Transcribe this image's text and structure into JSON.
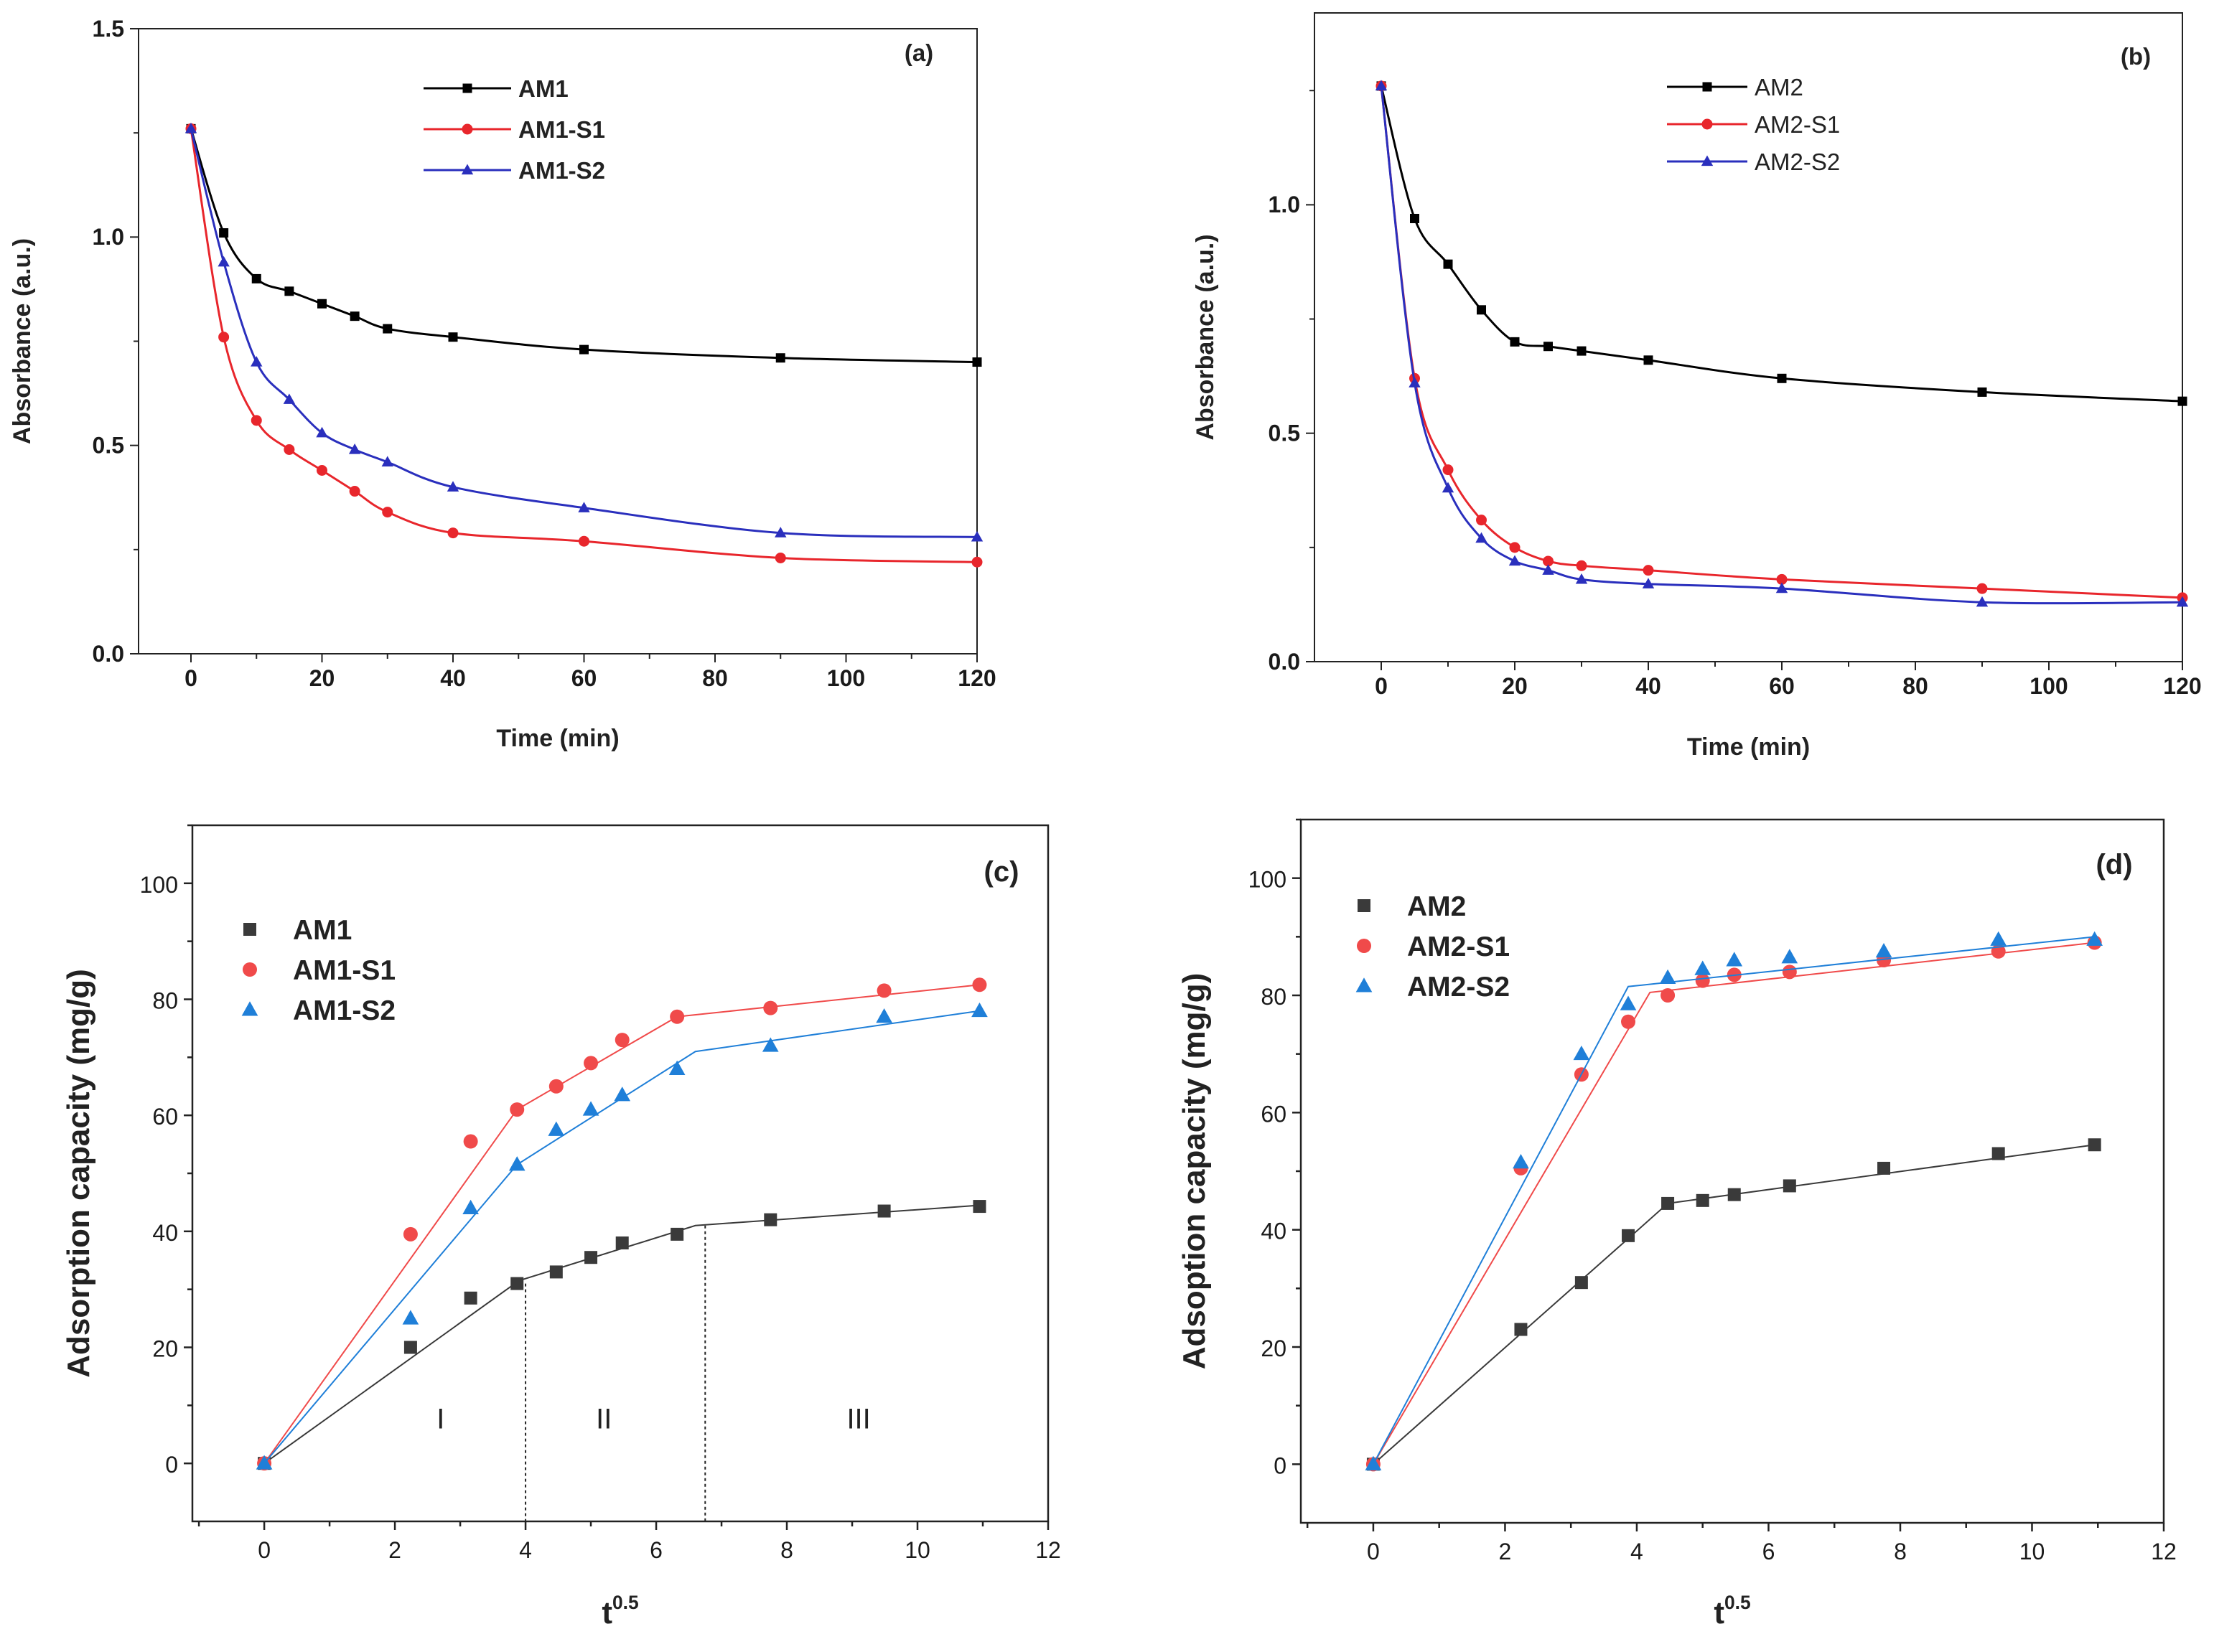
{
  "chart_data": [
    {
      "id": "a",
      "type": "line",
      "panel_label": "(a)",
      "xlabel": "Time (min)",
      "ylabel": "Absorbance (a.u.)",
      "xlim": [
        -8,
        120
      ],
      "ylim": [
        0,
        1.5
      ],
      "xticks": [
        0,
        20,
        40,
        60,
        80,
        100,
        120
      ],
      "xtick_labels": [
        "0",
        "20",
        "40",
        "60",
        "80",
        "100",
        "120"
      ],
      "yticks": [
        0,
        0.5,
        1.0,
        1.5
      ],
      "ytick_labels": [
        "0.0",
        "0.5",
        "1.0",
        "1.5"
      ],
      "legend_position": "top-center",
      "series": [
        {
          "name": "AM1",
          "color": "#000000",
          "marker": "square",
          "x": [
            0,
            5,
            10,
            15,
            20,
            25,
            30,
            40,
            60,
            90,
            120
          ],
          "y": [
            1.26,
            1.01,
            0.9,
            0.87,
            0.84,
            0.81,
            0.78,
            0.76,
            0.73,
            0.71,
            0.7
          ]
        },
        {
          "name": "AM1-S1",
          "color": "#e8262c",
          "marker": "circle",
          "x": [
            0,
            5,
            10,
            15,
            20,
            25,
            30,
            40,
            60,
            90,
            120
          ],
          "y": [
            1.26,
            0.76,
            0.56,
            0.49,
            0.44,
            0.39,
            0.34,
            0.29,
            0.27,
            0.23,
            0.22
          ]
        },
        {
          "name": "AM1-S2",
          "color": "#2a2fbd",
          "marker": "triangle",
          "x": [
            0,
            5,
            10,
            15,
            20,
            25,
            30,
            40,
            60,
            90,
            120
          ],
          "y": [
            1.26,
            0.94,
            0.7,
            0.61,
            0.53,
            0.49,
            0.46,
            0.4,
            0.35,
            0.29,
            0.28
          ]
        }
      ]
    },
    {
      "id": "b",
      "type": "line",
      "panel_label": "(b)",
      "xlabel": "Time (min)",
      "ylabel": "Absorbance (a.u.)",
      "xlim": [
        -10,
        120
      ],
      "ylim": [
        0,
        1.42
      ],
      "xticks": [
        0,
        20,
        40,
        60,
        80,
        100,
        120
      ],
      "xtick_labels": [
        "0",
        "20",
        "40",
        "60",
        "80",
        "100",
        "120"
      ],
      "yticks": [
        0,
        0.5,
        1.0
      ],
      "ytick_labels": [
        "0.0",
        "0.5",
        "1.0"
      ],
      "legend_position": "top-center",
      "series": [
        {
          "name": "AM2",
          "color": "#000000",
          "marker": "square",
          "x": [
            0,
            5,
            10,
            15,
            20,
            25,
            30,
            40,
            60,
            90,
            120
          ],
          "y": [
            1.26,
            0.97,
            0.87,
            0.77,
            0.7,
            0.69,
            0.68,
            0.66,
            0.62,
            0.59,
            0.57
          ]
        },
        {
          "name": "AM2-S1",
          "color": "#e8262c",
          "marker": "circle",
          "x": [
            0,
            5,
            10,
            15,
            20,
            25,
            30,
            40,
            60,
            90,
            120
          ],
          "y": [
            1.26,
            0.62,
            0.42,
            0.31,
            0.25,
            0.22,
            0.21,
            0.2,
            0.18,
            0.16,
            0.14
          ]
        },
        {
          "name": "AM2-S2",
          "color": "#2a2fbd",
          "marker": "triangle",
          "x": [
            0,
            5,
            10,
            15,
            20,
            25,
            30,
            40,
            60,
            90,
            120
          ],
          "y": [
            1.26,
            0.61,
            0.38,
            0.27,
            0.22,
            0.2,
            0.18,
            0.17,
            0.16,
            0.13,
            0.13
          ]
        }
      ]
    },
    {
      "id": "c",
      "type": "scatter",
      "panel_label": "(c)",
      "xlabel": "t",
      "xlabel_sup": "0.5",
      "ylabel": "Adsorption capacity (mg/g)",
      "xlim": [
        -1.1,
        12
      ],
      "ylim": [
        -10,
        110
      ],
      "xticks": [
        0,
        2,
        4,
        6,
        8,
        10,
        12
      ],
      "xtick_labels": [
        "0",
        "2",
        "4",
        "6",
        "8",
        "10",
        "12"
      ],
      "yticks": [
        0,
        20,
        40,
        60,
        80,
        100
      ],
      "ytick_labels": [
        "0",
        "20",
        "40",
        "60",
        "80",
        "100"
      ],
      "legend_position": "top-left",
      "region_dividers": [
        4.0,
        6.75
      ],
      "region_labels": [
        {
          "text": "I",
          "x": 2.7,
          "y": 6
        },
        {
          "text": "II",
          "x": 5.2,
          "y": 6
        },
        {
          "text": "III",
          "x": 9.1,
          "y": 6
        }
      ],
      "series": [
        {
          "name": "AM1",
          "color": "#3a3a3a",
          "marker": "square",
          "x": [
            0,
            2.24,
            3.16,
            3.87,
            4.47,
            5.0,
            5.48,
            6.32,
            7.75,
            9.49,
            10.95
          ],
          "y": [
            0,
            20,
            28.5,
            31,
            33,
            35.5,
            38,
            39.5,
            42,
            43.5,
            44.3
          ],
          "fit_x": [
            0,
            3.9,
            6.6,
            10.95
          ],
          "fit_y": [
            0,
            31.5,
            41,
            44.5
          ]
        },
        {
          "name": "AM1-S1",
          "color": "#f04a4a",
          "marker": "circle",
          "x": [
            0,
            2.24,
            3.16,
            3.87,
            4.47,
            5.0,
            5.48,
            6.32,
            7.75,
            9.49,
            10.95
          ],
          "y": [
            0,
            39.5,
            55.5,
            61,
            65,
            69,
            73,
            77,
            78.5,
            81.5,
            82.5
          ],
          "fit_x": [
            0,
            3.87,
            6.32,
            10.95
          ],
          "fit_y": [
            0,
            61,
            77,
            82.5
          ]
        },
        {
          "name": "AM1-S2",
          "color": "#1f7fd8",
          "marker": "triangle",
          "x": [
            0,
            2.24,
            3.16,
            3.87,
            4.47,
            5.0,
            5.48,
            6.32,
            7.75,
            9.49,
            10.95
          ],
          "y": [
            0,
            25,
            44,
            51.5,
            57.5,
            61,
            63.5,
            68,
            72,
            77,
            78
          ],
          "fit_x": [
            0,
            3.87,
            6.6,
            10.95
          ],
          "fit_y": [
            0,
            51.5,
            71,
            78
          ]
        }
      ]
    },
    {
      "id": "d",
      "type": "scatter",
      "panel_label": "(d)",
      "xlabel": "t",
      "xlabel_sup": "0.5",
      "ylabel": "Adsoption capacity (mg/g)",
      "xlim": [
        -1.1,
        12
      ],
      "ylim": [
        -10,
        110
      ],
      "xticks": [
        0,
        2,
        4,
        6,
        8,
        10,
        12
      ],
      "xtick_labels": [
        "0",
        "2",
        "4",
        "6",
        "8",
        "10",
        "12"
      ],
      "yticks": [
        0,
        20,
        40,
        60,
        80,
        100
      ],
      "ytick_labels": [
        "0",
        "20",
        "40",
        "60",
        "80",
        "100"
      ],
      "legend_position": "top-left",
      "series": [
        {
          "name": "AM2",
          "color": "#3a3a3a",
          "marker": "square",
          "x": [
            0,
            2.24,
            3.16,
            3.87,
            4.47,
            5.0,
            5.48,
            6.32,
            7.75,
            9.49,
            10.95
          ],
          "y": [
            0,
            23,
            31,
            39,
            44.5,
            45,
            46,
            47.5,
            50.5,
            53,
            54.5
          ],
          "fit_x": [
            0,
            3.87,
            4.47,
            10.95
          ],
          "fit_y": [
            0,
            38.5,
            44.5,
            54.5
          ]
        },
        {
          "name": "AM2-S1",
          "color": "#f04a4a",
          "marker": "circle",
          "x": [
            0,
            2.24,
            3.16,
            3.87,
            4.47,
            5.0,
            5.48,
            6.32,
            7.75,
            9.49,
            10.95
          ],
          "y": [
            0,
            50.5,
            66.5,
            75.5,
            80,
            82.5,
            83.5,
            84,
            86,
            87.5,
            89
          ],
          "fit_x": [
            0,
            4.2,
            10.95
          ],
          "fit_y": [
            0,
            80.5,
            89
          ]
        },
        {
          "name": "AM2-S2",
          "color": "#1f7fd8",
          "marker": "triangle",
          "x": [
            0,
            2.24,
            3.16,
            3.87,
            4.47,
            5.0,
            5.48,
            6.32,
            7.75,
            9.49,
            10.95
          ],
          "y": [
            0,
            51.5,
            70,
            78.5,
            83,
            84.5,
            86,
            86.5,
            87.5,
            89.5,
            89.5
          ],
          "fit_x": [
            0,
            3.87,
            10.95
          ],
          "fit_y": [
            0,
            81.5,
            90
          ]
        }
      ]
    }
  ]
}
